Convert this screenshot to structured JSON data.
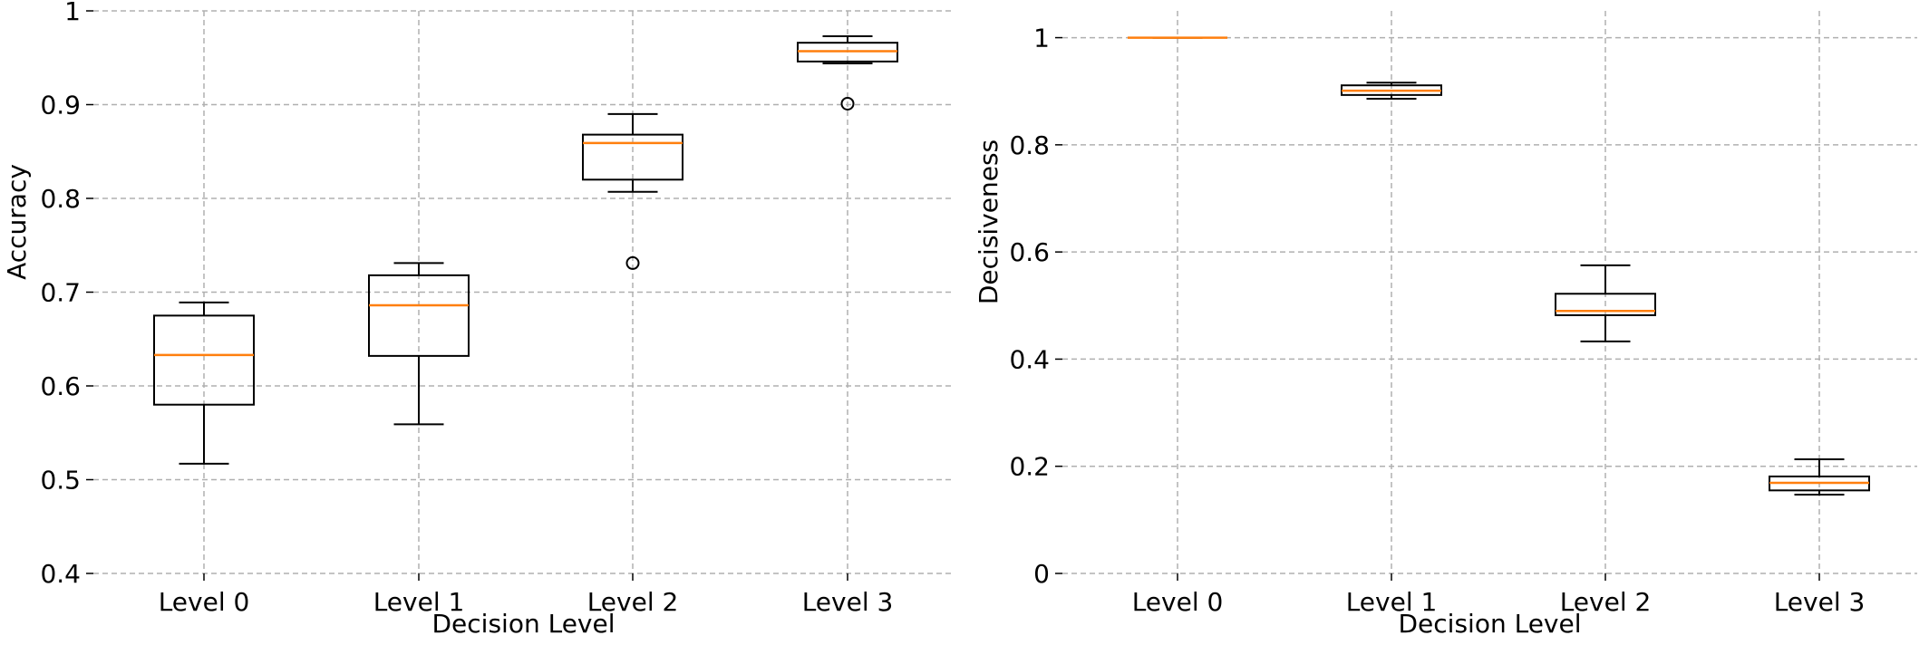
{
  "chart_data": [
    {
      "type": "box",
      "xlabel": "Decision Level",
      "ylabel": "Accuracy",
      "categories": [
        "Level 0",
        "Level 1",
        "Level 2",
        "Level 3"
      ],
      "ylim": [
        0.4,
        1.0
      ],
      "yticks": [
        0.4,
        0.5,
        0.6,
        0.7,
        0.8,
        0.9,
        1.0
      ],
      "ytick_labels": [
        "0.4",
        "0.5",
        "0.6",
        "0.7",
        "0.8",
        "0.9",
        "1"
      ],
      "grid": true,
      "boxes": [
        {
          "category": "Level 0",
          "whisker_low": 0.517,
          "q1": 0.58,
          "median": 0.633,
          "q3": 0.675,
          "whisker_high": 0.689,
          "outliers": []
        },
        {
          "category": "Level 1",
          "whisker_low": 0.559,
          "q1": 0.632,
          "median": 0.686,
          "q3": 0.718,
          "whisker_high": 0.731,
          "outliers": []
        },
        {
          "category": "Level 2",
          "whisker_low": 0.807,
          "q1": 0.82,
          "median": 0.859,
          "q3": 0.868,
          "whisker_high": 0.89,
          "outliers": [
            0.731
          ]
        },
        {
          "category": "Level 3",
          "whisker_low": 0.944,
          "q1": 0.946,
          "median": 0.957,
          "q3": 0.966,
          "whisker_high": 0.973,
          "outliers": [
            0.901
          ]
        }
      ]
    },
    {
      "type": "box",
      "xlabel": "Decision Level",
      "ylabel": "Decisiveness",
      "categories": [
        "Level 0",
        "Level 1",
        "Level 2",
        "Level 3"
      ],
      "ylim": [
        0,
        1.05
      ],
      "yticks": [
        0,
        0.2,
        0.4,
        0.6,
        0.8,
        1.0
      ],
      "ytick_labels": [
        "0",
        "0.2",
        "0.4",
        "0.6",
        "0.8",
        "1"
      ],
      "grid": true,
      "boxes": [
        {
          "category": "Level 0",
          "whisker_low": 1.0,
          "q1": 1.0,
          "median": 1.0,
          "q3": 1.0,
          "whisker_high": 1.0,
          "outliers": []
        },
        {
          "category": "Level 1",
          "whisker_low": 0.886,
          "q1": 0.893,
          "median": 0.901,
          "q3": 0.911,
          "whisker_high": 0.916,
          "outliers": []
        },
        {
          "category": "Level 2",
          "whisker_low": 0.433,
          "q1": 0.482,
          "median": 0.49,
          "q3": 0.522,
          "whisker_high": 0.575,
          "outliers": []
        },
        {
          "category": "Level 3",
          "whisker_low": 0.147,
          "q1": 0.155,
          "median": 0.169,
          "q3": 0.181,
          "whisker_high": 0.213,
          "outliers": []
        }
      ]
    }
  ],
  "colors": {
    "box": "#000000",
    "median": "#ff7f0e",
    "grid": "#b0b0b0"
  }
}
